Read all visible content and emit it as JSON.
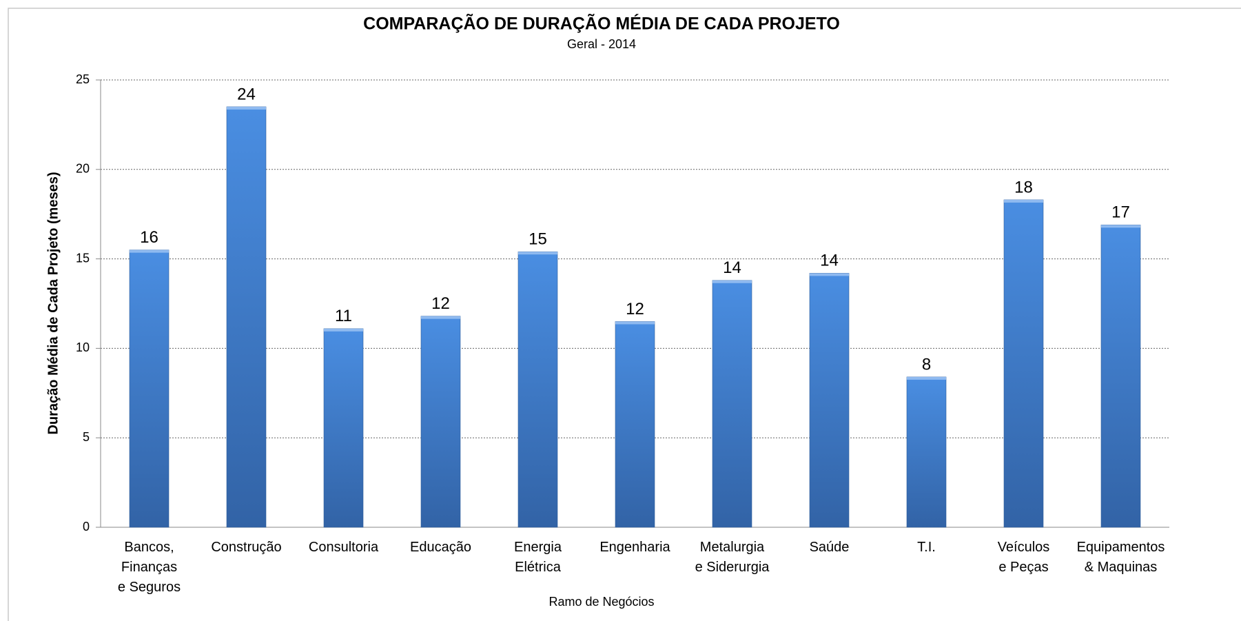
{
  "chart_data": {
    "type": "bar",
    "title": "COMPARAÇÃO DE DURAÇÃO MÉDIA DE CADA PROJETO",
    "subtitle": "Geral - 2014",
    "x_label": "Ramo de Negócios",
    "y_label": "Duração Média de Cada Projeto (meses)",
    "categories": [
      "Bancos,\nFinanças\ne Seguros",
      "Construção",
      "Consultoria",
      "Educação",
      "Energia\nElétrica",
      "Engenharia",
      "Metalurgia\ne Siderurgia",
      "Saúde",
      "T.I.",
      "Veículos\ne Peças",
      "Equipamentos\n& Maquinas"
    ],
    "values": [
      15.5,
      23.5,
      11.1,
      11.8,
      15.4,
      11.5,
      13.8,
      14.2,
      8.4,
      18.3,
      16.9
    ],
    "value_labels": [
      "16",
      "24",
      "11",
      "12",
      "15",
      "12",
      "14",
      "14",
      "8",
      "18",
      "17"
    ],
    "color": "#3f7fd3",
    "ylim": [
      0,
      25
    ],
    "yticks": [
      0,
      5,
      10,
      15,
      20,
      25
    ],
    "grid": true
  }
}
